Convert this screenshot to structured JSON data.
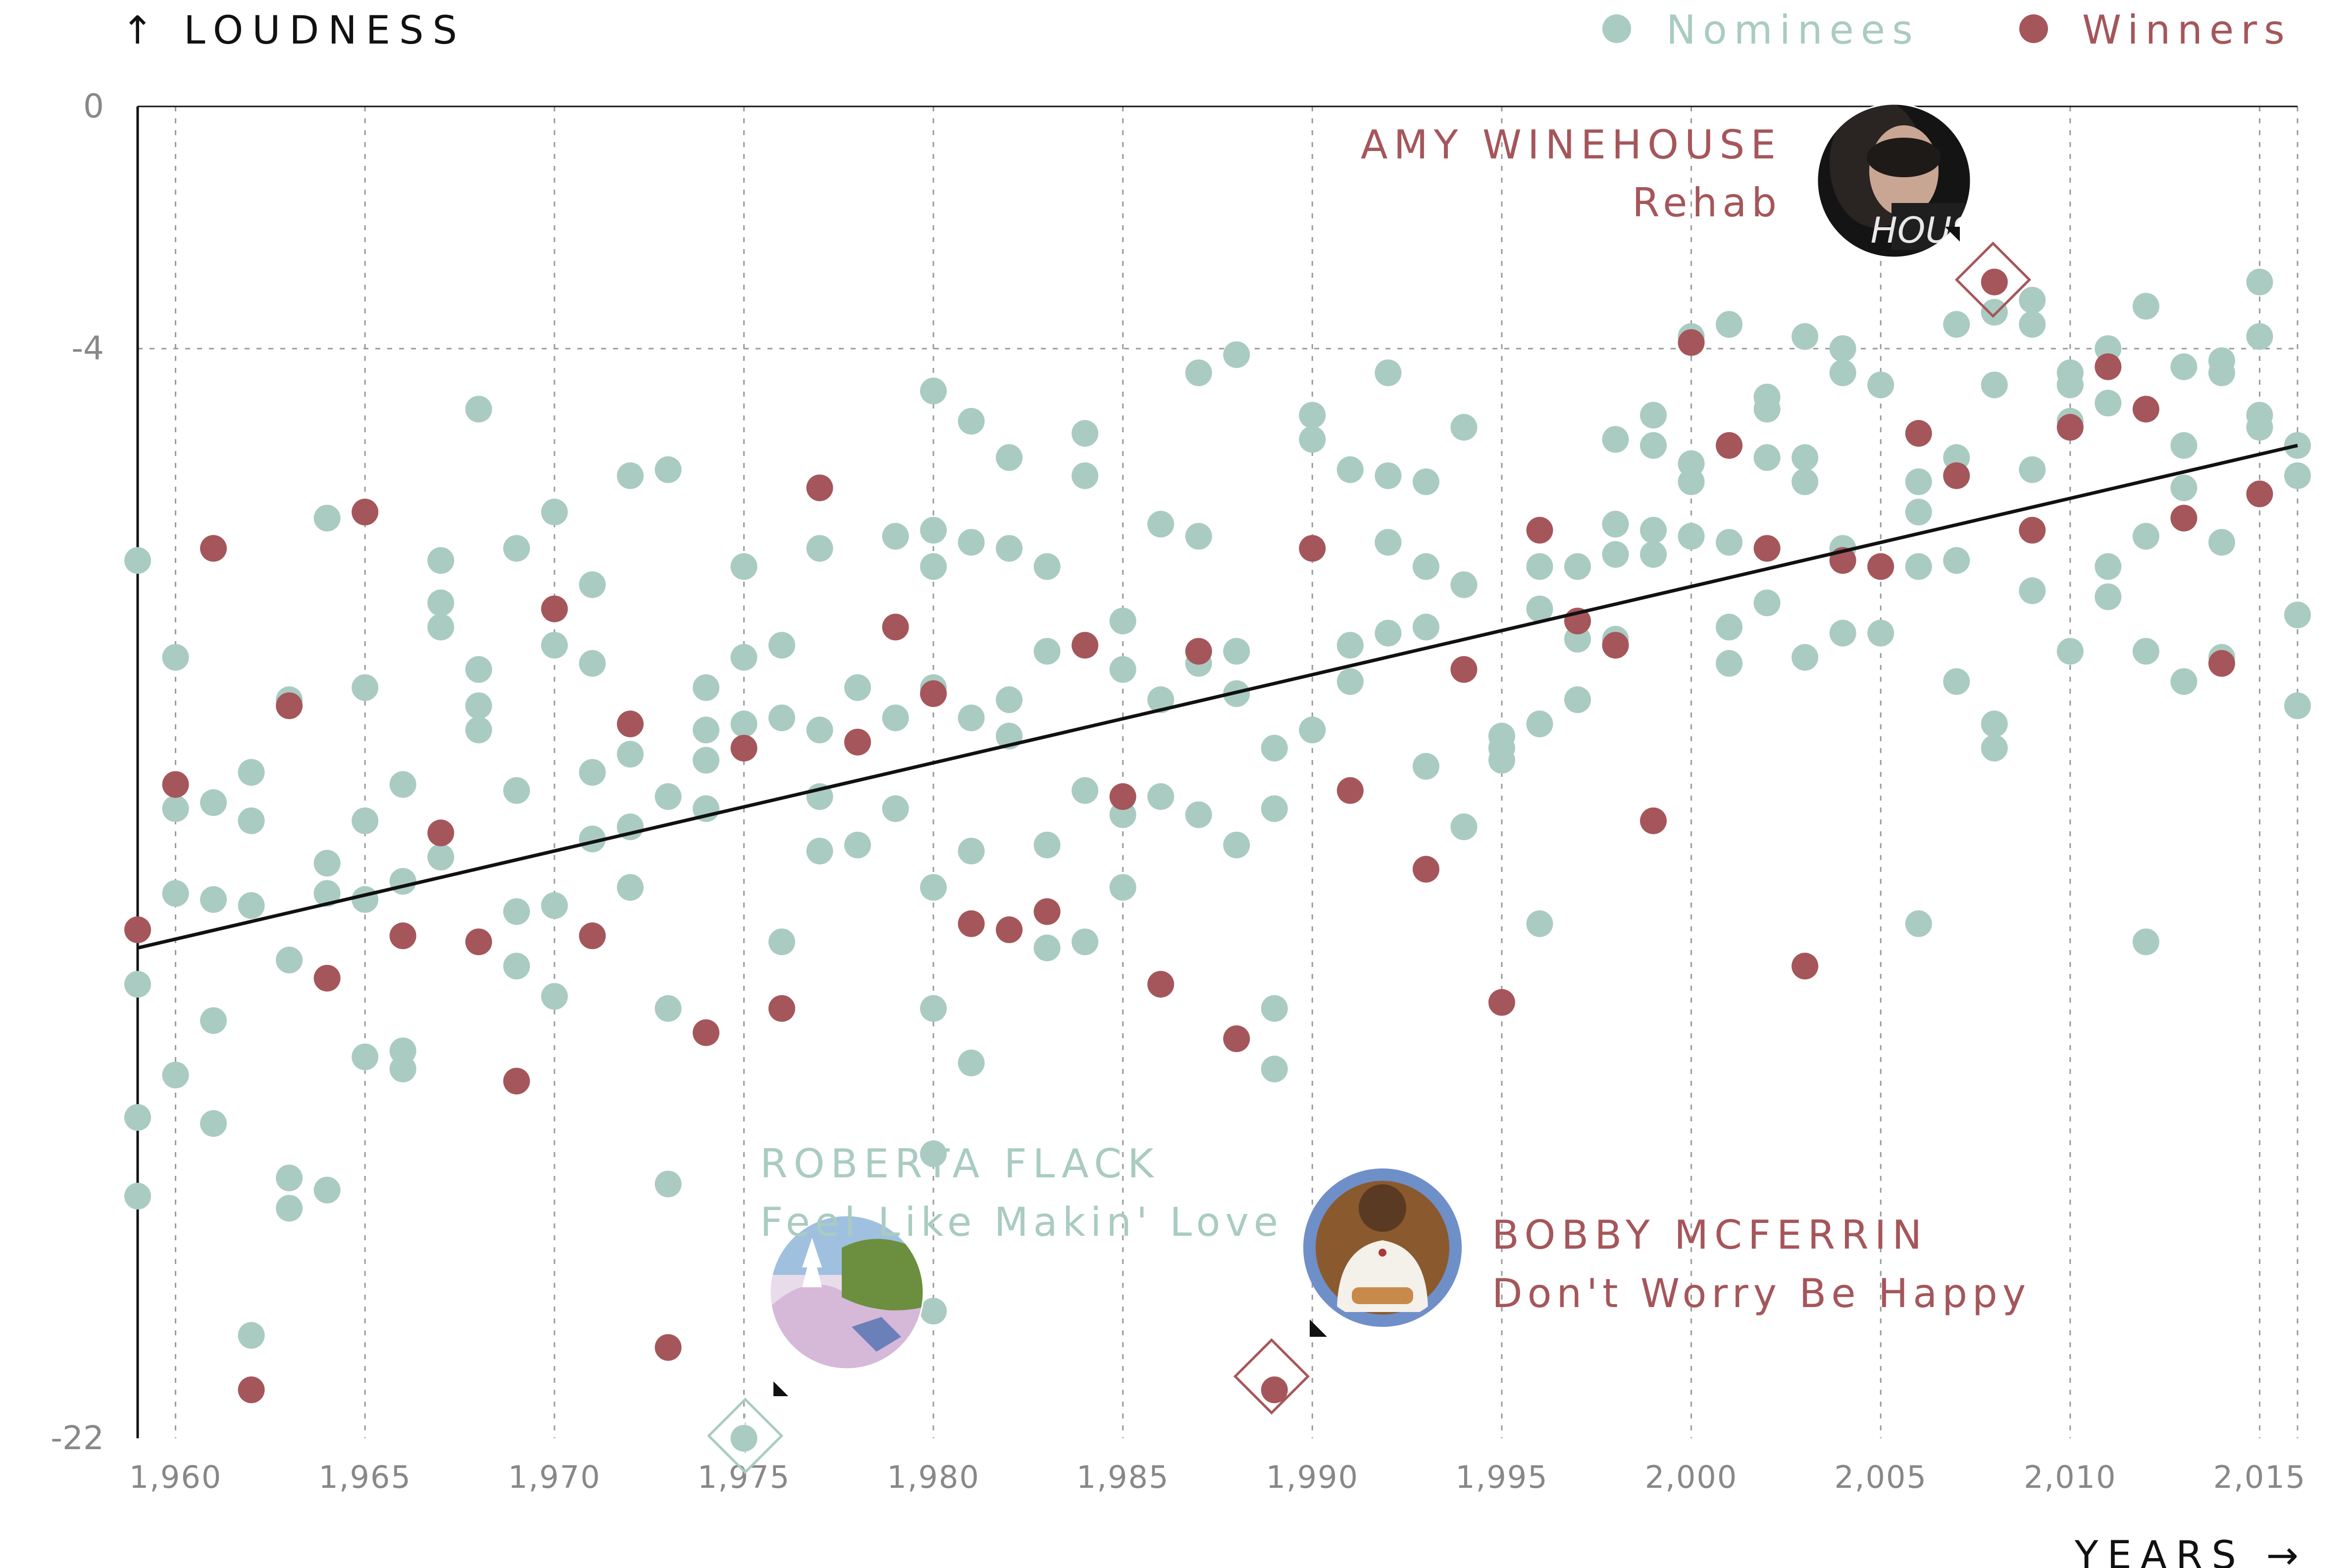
{
  "chart_data": {
    "type": "scatter",
    "ylabel": "↑ LOUDNESS",
    "xlabel": "YEARS →",
    "xlim": [
      1959,
      2016
    ],
    "ylim": [
      -22,
      0
    ],
    "xticks": [
      1960,
      1965,
      1970,
      1975,
      1980,
      1985,
      1990,
      1995,
      2000,
      2005,
      2010,
      2015
    ],
    "xtick_labels": [
      "1,960",
      "1,965",
      "1,970",
      "1,975",
      "1,980",
      "1,985",
      "1,990",
      "1,995",
      "2,000",
      "2,005",
      "2,010",
      "2,015"
    ],
    "yticks": [
      0,
      -4,
      -22
    ],
    "ytick_labels": [
      "0",
      "-4",
      "-22"
    ],
    "grid": true,
    "legend_placement": "top-right",
    "colors": {
      "nominees": "#a9cbc2",
      "winners": "#a5565a",
      "trend": "#111111"
    },
    "series": [
      {
        "name": "Nominees",
        "color": "#a9cbc2",
        "points": [
          [
            1959,
            -7.5
          ],
          [
            1959,
            -14.5
          ],
          [
            1959,
            -16.7
          ],
          [
            1959,
            -18.0
          ],
          [
            1960,
            -9.1
          ],
          [
            1960,
            -11.6
          ],
          [
            1960,
            -13.0
          ],
          [
            1960,
            -16.0
          ],
          [
            1961,
            -11.5
          ],
          [
            1961,
            -13.1
          ],
          [
            1961,
            -15.1
          ],
          [
            1961,
            -16.8
          ],
          [
            1962,
            -11.0
          ],
          [
            1962,
            -11.8
          ],
          [
            1962,
            -13.2
          ],
          [
            1962,
            -20.3
          ],
          [
            1963,
            -9.8
          ],
          [
            1963,
            -14.1
          ],
          [
            1963,
            -17.7
          ],
          [
            1963,
            -18.2
          ],
          [
            1964,
            -6.8
          ],
          [
            1964,
            -12.5
          ],
          [
            1964,
            -13.0
          ],
          [
            1964,
            -17.9
          ],
          [
            1965,
            -9.6
          ],
          [
            1965,
            -11.8
          ],
          [
            1965,
            -13.1
          ],
          [
            1965,
            -15.7
          ],
          [
            1966,
            -11.2
          ],
          [
            1966,
            -12.8
          ],
          [
            1966,
            -15.6
          ],
          [
            1966,
            -15.9
          ],
          [
            1967,
            -7.5
          ],
          [
            1967,
            -8.2
          ],
          [
            1967,
            -8.6
          ],
          [
            1967,
            -12.4
          ],
          [
            1968,
            -5.0
          ],
          [
            1968,
            -9.3
          ],
          [
            1968,
            -9.9
          ],
          [
            1968,
            -10.3
          ],
          [
            1969,
            -7.3
          ],
          [
            1969,
            -11.3
          ],
          [
            1969,
            -13.3
          ],
          [
            1969,
            -14.2
          ],
          [
            1970,
            -6.7
          ],
          [
            1970,
            -8.9
          ],
          [
            1970,
            -13.2
          ],
          [
            1970,
            -14.7
          ],
          [
            1971,
            -7.9
          ],
          [
            1971,
            -9.2
          ],
          [
            1971,
            -11.0
          ],
          [
            1971,
            -12.1
          ],
          [
            1972,
            -6.1
          ],
          [
            1972,
            -10.7
          ],
          [
            1972,
            -11.9
          ],
          [
            1972,
            -12.9
          ],
          [
            1973,
            -6.0
          ],
          [
            1973,
            -11.4
          ],
          [
            1973,
            -14.9
          ],
          [
            1973,
            -17.8
          ],
          [
            1974,
            -9.6
          ],
          [
            1974,
            -10.3
          ],
          [
            1974,
            -10.8
          ],
          [
            1974,
            -11.6
          ],
          [
            1975,
            -7.6
          ],
          [
            1975,
            -9.1
          ],
          [
            1975,
            -10.2
          ],
          [
            1975,
            -22.0
          ],
          [
            1976,
            -8.9
          ],
          [
            1976,
            -10.1
          ],
          [
            1976,
            -13.8
          ],
          [
            1977,
            -7.3
          ],
          [
            1977,
            -10.3
          ],
          [
            1977,
            -11.4
          ],
          [
            1977,
            -12.3
          ],
          [
            1978,
            -9.6
          ],
          [
            1978,
            -10.5
          ],
          [
            1978,
            -12.2
          ],
          [
            1979,
            -7.1
          ],
          [
            1979,
            -10.1
          ],
          [
            1979,
            -11.6
          ],
          [
            1980,
            -4.7
          ],
          [
            1980,
            -7.0
          ],
          [
            1980,
            -7.6
          ],
          [
            1980,
            -9.6
          ],
          [
            1980,
            -12.9
          ],
          [
            1980,
            -14.9
          ],
          [
            1980,
            -17.3
          ],
          [
            1980,
            -19.9
          ],
          [
            1981,
            -5.2
          ],
          [
            1981,
            -7.2
          ],
          [
            1981,
            -10.1
          ],
          [
            1981,
            -12.3
          ],
          [
            1981,
            -15.8
          ],
          [
            1982,
            -5.8
          ],
          [
            1982,
            -7.3
          ],
          [
            1982,
            -9.8
          ],
          [
            1982,
            -10.4
          ],
          [
            1983,
            -7.6
          ],
          [
            1983,
            -9.0
          ],
          [
            1983,
            -12.2
          ],
          [
            1983,
            -13.9
          ],
          [
            1984,
            -5.4
          ],
          [
            1984,
            -6.1
          ],
          [
            1984,
            -11.3
          ],
          [
            1984,
            -13.8
          ],
          [
            1985,
            -8.5
          ],
          [
            1985,
            -9.3
          ],
          [
            1985,
            -11.7
          ],
          [
            1985,
            -12.9
          ],
          [
            1986,
            -6.9
          ],
          [
            1986,
            -9.8
          ],
          [
            1986,
            -11.4
          ],
          [
            1987,
            -4.4
          ],
          [
            1987,
            -7.1
          ],
          [
            1987,
            -9.2
          ],
          [
            1987,
            -11.7
          ],
          [
            1988,
            -4.1
          ],
          [
            1988,
            -9.0
          ],
          [
            1988,
            -9.7
          ],
          [
            1988,
            -12.2
          ],
          [
            1989,
            -10.6
          ],
          [
            1989,
            -11.6
          ],
          [
            1989,
            -14.9
          ],
          [
            1989,
            -15.9
          ],
          [
            1990,
            -5.1
          ],
          [
            1990,
            -5.5
          ],
          [
            1990,
            -10.3
          ],
          [
            1991,
            -6.0
          ],
          [
            1991,
            -8.9
          ],
          [
            1991,
            -9.5
          ],
          [
            1992,
            -4.4
          ],
          [
            1992,
            -6.1
          ],
          [
            1992,
            -7.2
          ],
          [
            1992,
            -8.7
          ],
          [
            1993,
            -6.2
          ],
          [
            1993,
            -7.6
          ],
          [
            1993,
            -8.6
          ],
          [
            1993,
            -10.9
          ],
          [
            1994,
            -5.3
          ],
          [
            1994,
            -7.9
          ],
          [
            1994,
            -11.9
          ],
          [
            1995,
            -10.4
          ],
          [
            1995,
            -10.6
          ],
          [
            1995,
            -10.8
          ],
          [
            1996,
            -7.6
          ],
          [
            1996,
            -8.3
          ],
          [
            1996,
            -10.2
          ],
          [
            1996,
            -13.5
          ],
          [
            1997,
            -7.6
          ],
          [
            1997,
            -8.8
          ],
          [
            1997,
            -9.8
          ],
          [
            1998,
            -5.5
          ],
          [
            1998,
            -6.9
          ],
          [
            1998,
            -7.4
          ],
          [
            1998,
            -8.8
          ],
          [
            1999,
            -5.1
          ],
          [
            1999,
            -5.6
          ],
          [
            1999,
            -7.0
          ],
          [
            1999,
            -7.4
          ],
          [
            2000,
            -3.8
          ],
          [
            2000,
            -5.9
          ],
          [
            2000,
            -6.2
          ],
          [
            2000,
            -7.1
          ],
          [
            2001,
            -3.6
          ],
          [
            2001,
            -7.2
          ],
          [
            2001,
            -8.6
          ],
          [
            2001,
            -9.2
          ],
          [
            2002,
            -4.8
          ],
          [
            2002,
            -5.0
          ],
          [
            2002,
            -5.8
          ],
          [
            2002,
            -8.2
          ],
          [
            2003,
            -3.8
          ],
          [
            2003,
            -5.8
          ],
          [
            2003,
            -6.2
          ],
          [
            2003,
            -9.1
          ],
          [
            2004,
            -4.0
          ],
          [
            2004,
            -4.4
          ],
          [
            2004,
            -7.3
          ],
          [
            2004,
            -8.7
          ],
          [
            2005,
            -4.6
          ],
          [
            2005,
            -8.7
          ],
          [
            2006,
            -6.2
          ],
          [
            2006,
            -6.7
          ],
          [
            2006,
            -7.6
          ],
          [
            2006,
            -13.5
          ],
          [
            2007,
            -3.6
          ],
          [
            2007,
            -5.8
          ],
          [
            2007,
            -7.5
          ],
          [
            2007,
            -9.5
          ],
          [
            2008,
            -3.4
          ],
          [
            2008,
            -4.6
          ],
          [
            2008,
            -10.2
          ],
          [
            2008,
            -10.6
          ],
          [
            2009,
            -3.2
          ],
          [
            2009,
            -3.6
          ],
          [
            2009,
            -6.0
          ],
          [
            2009,
            -8.0
          ],
          [
            2010,
            -4.4
          ],
          [
            2010,
            -4.6
          ],
          [
            2010,
            -5.2
          ],
          [
            2010,
            -9.0
          ],
          [
            2011,
            -4.0
          ],
          [
            2011,
            -4.9
          ],
          [
            2011,
            -7.6
          ],
          [
            2011,
            -8.1
          ],
          [
            2012,
            -3.3
          ],
          [
            2012,
            -7.1
          ],
          [
            2012,
            -9.0
          ],
          [
            2012,
            -13.8
          ],
          [
            2013,
            -4.3
          ],
          [
            2013,
            -5.6
          ],
          [
            2013,
            -6.3
          ],
          [
            2013,
            -9.5
          ],
          [
            2014,
            -4.2
          ],
          [
            2014,
            -4.4
          ],
          [
            2014,
            -7.2
          ],
          [
            2014,
            -9.1
          ],
          [
            2015,
            -2.9
          ],
          [
            2015,
            -3.8
          ],
          [
            2015,
            -5.1
          ],
          [
            2015,
            -5.3
          ],
          [
            2016,
            -5.6
          ],
          [
            2016,
            -6.1
          ],
          [
            2016,
            -8.4
          ],
          [
            2016,
            -9.9
          ]
        ]
      },
      {
        "name": "Winners",
        "color": "#a5565a",
        "points": [
          [
            1959,
            -13.6
          ],
          [
            1960,
            -11.2
          ],
          [
            1961,
            -7.3
          ],
          [
            1962,
            -21.2
          ],
          [
            1963,
            -9.9
          ],
          [
            1964,
            -14.4
          ],
          [
            1965,
            -6.7
          ],
          [
            1966,
            -13.7
          ],
          [
            1967,
            -12.0
          ],
          [
            1968,
            -13.8
          ],
          [
            1969,
            -16.1
          ],
          [
            1970,
            -8.3
          ],
          [
            1971,
            -13.7
          ],
          [
            1972,
            -10.2
          ],
          [
            1973,
            -20.5
          ],
          [
            1974,
            -15.3
          ],
          [
            1975,
            -10.6
          ],
          [
            1976,
            -14.9
          ],
          [
            1977,
            -6.3
          ],
          [
            1978,
            -10.5
          ],
          [
            1979,
            -8.6
          ],
          [
            1980,
            -9.7
          ],
          [
            1981,
            -13.5
          ],
          [
            1982,
            -13.6
          ],
          [
            1983,
            -13.3
          ],
          [
            1984,
            -8.9
          ],
          [
            1985,
            -11.4
          ],
          [
            1986,
            -14.5
          ],
          [
            1987,
            -9.0
          ],
          [
            1988,
            -15.4
          ],
          [
            1989,
            -21.2
          ],
          [
            1990,
            -7.3
          ],
          [
            1991,
            -11.3
          ],
          [
            1992,
            -19.1
          ],
          [
            1993,
            -12.6
          ],
          [
            1994,
            -9.3
          ],
          [
            1995,
            -14.8
          ],
          [
            1996,
            -7.0
          ],
          [
            1997,
            -8.5
          ],
          [
            1998,
            -8.9
          ],
          [
            1999,
            -11.8
          ],
          [
            2000,
            -3.9
          ],
          [
            2001,
            -5.6
          ],
          [
            2002,
            -7.3
          ],
          [
            2003,
            -14.2
          ],
          [
            2004,
            -7.5
          ],
          [
            2005,
            -7.6
          ],
          [
            2006,
            -5.4
          ],
          [
            2007,
            -6.1
          ],
          [
            2008,
            -2.9
          ],
          [
            2009,
            -7.0
          ],
          [
            2010,
            -5.3
          ],
          [
            2011,
            -4.3
          ],
          [
            2012,
            -5.0
          ],
          [
            2013,
            -6.8
          ],
          [
            2014,
            -9.2
          ],
          [
            2015,
            -6.4
          ]
        ]
      }
    ],
    "trend_line": {
      "from": [
        1959,
        -13.9
      ],
      "to": [
        2016,
        -5.6
      ]
    },
    "highlights": [
      {
        "x": 2008,
        "y": -2.9,
        "kind": "winner",
        "artist": "AMY WINEHOUSE",
        "song": "Rehab",
        "label_side": "left",
        "art": "dark-portrait"
      },
      {
        "x": 1975,
        "y": -22.0,
        "kind": "nominee",
        "artist": "ROBERTA FLACK",
        "song": "Feel Like Makin' Love",
        "label_side": "top",
        "art": "painted-landscape"
      },
      {
        "x": 1989,
        "y": -21.2,
        "kind": "winner",
        "artist": "BOBBY MCFERRIN",
        "song": "Don't Worry Be Happy",
        "label_side": "right",
        "art": "smiling-man"
      }
    ]
  },
  "legend": [
    {
      "label": "Nominees",
      "color": "#a9cbc2"
    },
    {
      "label": "Winners",
      "color": "#a5565a"
    }
  ]
}
